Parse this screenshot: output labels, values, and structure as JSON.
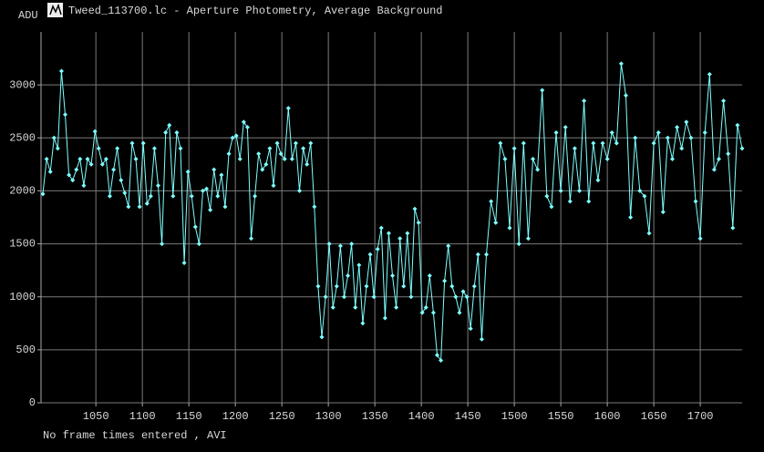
{
  "window_title": "Tweed_113700.lc - Aperture Photometry, Average Background",
  "footer": "No frame times entered , AVI",
  "chart_data": {
    "type": "line",
    "ylabel": "ADU",
    "color": "#7fffff",
    "grid": true,
    "xlim": [
      991,
      1745
    ],
    "xticks": [
      1050,
      1100,
      1150,
      1200,
      1250,
      1300,
      1350,
      1400,
      1450,
      1500,
      1550,
      1600,
      1650,
      1700
    ],
    "ylim": [
      0,
      3500
    ],
    "yticks": [
      0,
      500,
      1000,
      1500,
      2000,
      2500,
      3000
    ],
    "x": [
      993,
      997,
      1001,
      1005,
      1009,
      1013,
      1017,
      1021,
      1025,
      1029,
      1033,
      1037,
      1041,
      1045,
      1049,
      1053,
      1057,
      1061,
      1065,
      1069,
      1073,
      1077,
      1081,
      1085,
      1089,
      1093,
      1097,
      1101,
      1105,
      1109,
      1113,
      1117,
      1121,
      1125,
      1129,
      1133,
      1137,
      1141,
      1145,
      1149,
      1153,
      1157,
      1161,
      1165,
      1169,
      1173,
      1177,
      1181,
      1185,
      1189,
      1193,
      1197,
      1201,
      1205,
      1209,
      1213,
      1217,
      1221,
      1225,
      1229,
      1233,
      1237,
      1241,
      1245,
      1249,
      1253,
      1257,
      1261,
      1265,
      1269,
      1273,
      1277,
      1281,
      1285,
      1289,
      1293,
      1297,
      1301,
      1305,
      1309,
      1313,
      1317,
      1321,
      1325,
      1329,
      1333,
      1337,
      1341,
      1345,
      1349,
      1353,
      1357,
      1361,
      1365,
      1369,
      1373,
      1377,
      1381,
      1385,
      1389,
      1393,
      1397,
      1401,
      1405,
      1409,
      1413,
      1417,
      1421,
      1425,
      1429,
      1433,
      1437,
      1441,
      1445,
      1449,
      1453,
      1457,
      1461,
      1465,
      1470,
      1475,
      1480,
      1485,
      1490,
      1495,
      1500,
      1505,
      1510,
      1515,
      1520,
      1525,
      1530,
      1535,
      1540,
      1545,
      1550,
      1555,
      1560,
      1565,
      1570,
      1575,
      1580,
      1585,
      1590,
      1595,
      1600,
      1605,
      1610,
      1615,
      1620,
      1625,
      1630,
      1635,
      1640,
      1645,
      1650,
      1655,
      1660,
      1665,
      1670,
      1675,
      1680,
      1685,
      1690,
      1695,
      1700,
      1705,
      1710,
      1715,
      1720,
      1725,
      1730,
      1735,
      1740,
      1745
    ],
    "values": [
      1970,
      2300,
      2180,
      2500,
      2400,
      3130,
      2720,
      2150,
      2100,
      2200,
      2300,
      2050,
      2300,
      2250,
      2560,
      2400,
      2250,
      2300,
      1950,
      2200,
      2400,
      2100,
      1980,
      1850,
      2450,
      2300,
      1850,
      2450,
      1880,
      1950,
      2400,
      2050,
      1500,
      2550,
      2620,
      1950,
      2550,
      2400,
      1320,
      2180,
      1950,
      1660,
      1500,
      2000,
      2020,
      1820,
      2200,
      1950,
      2150,
      1850,
      2350,
      2500,
      2520,
      2300,
      2650,
      2600,
      1550,
      1950,
      2350,
      2200,
      2250,
      2400,
      2050,
      2450,
      2350,
      2300,
      2780,
      2300,
      2450,
      2000,
      2400,
      2250,
      2450,
      1850,
      1100,
      620,
      1000,
      1500,
      900,
      1100,
      1480,
      1000,
      1200,
      1500,
      900,
      1300,
      750,
      1100,
      1400,
      1000,
      1450,
      1650,
      800,
      1600,
      1200,
      900,
      1550,
      1100,
      1600,
      1000,
      1830,
      1700,
      850,
      900,
      1200,
      850,
      450,
      400,
      1150,
      1480,
      1100,
      1000,
      850,
      1050,
      1000,
      700,
      1100,
      1400,
      600,
      1400,
      1900,
      1700,
      2450,
      2300,
      1650,
      2400,
      1500,
      2450,
      1550,
      2300,
      2200,
      2950,
      1950,
      1850,
      2550,
      2000,
      2600,
      1900,
      2400,
      2000,
      2850,
      1900,
      2450,
      2100,
      2450,
      2300,
      2550,
      2450,
      3200,
      2900,
      1750,
      2500,
      2000,
      1950,
      1600,
      2450,
      2550,
      1800,
      2500,
      2300,
      2600,
      2400,
      2650,
      2500,
      1900,
      1550,
      2550,
      3100,
      2200,
      2300,
      2850,
      2350,
      1650,
      2620,
      2400
    ]
  }
}
